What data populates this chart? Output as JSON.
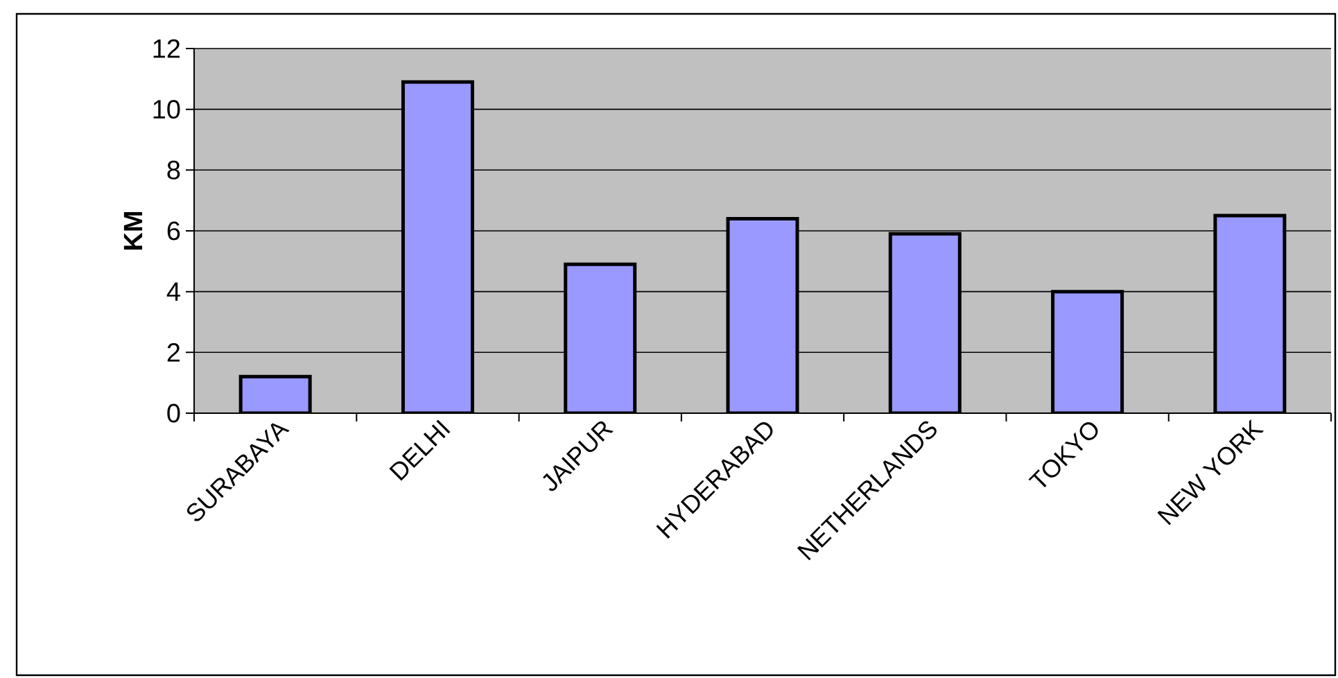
{
  "chart_data": {
    "type": "bar",
    "categories": [
      "SURABAYA",
      "DELHI",
      "JAIPUR",
      "HYDERABAD",
      "NETHERLANDS",
      "TOKYO",
      "NEW YORK"
    ],
    "values": [
      1.2,
      10.9,
      4.9,
      6.4,
      5.9,
      4.0,
      6.5
    ],
    "color": "#9999ff",
    "ylabel": "KM",
    "ylim": [
      0,
      12
    ],
    "yticks": [
      0,
      2,
      4,
      6,
      8,
      10,
      12
    ],
    "grid": "y"
  }
}
